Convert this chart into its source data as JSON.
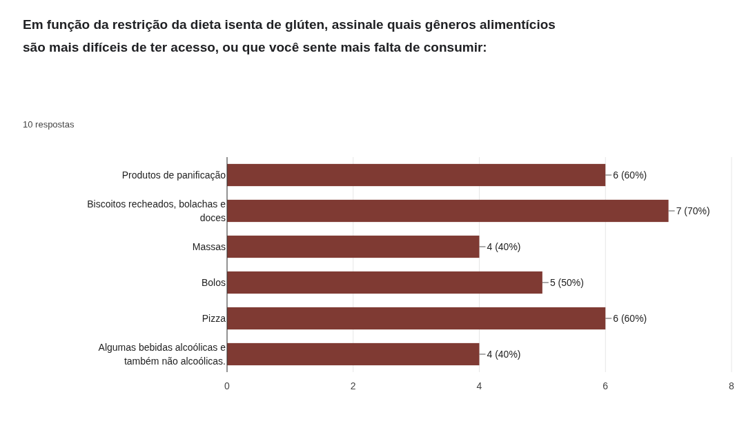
{
  "chart_data": {
    "type": "bar",
    "orientation": "horizontal",
    "title": "Em função da restrição da dieta isenta de glúten, assinale quais gêneros alimentícios são mais difíceis de ter acesso, ou que você sente mais falta de consumir:",
    "subtitle": "10 respostas",
    "categories": [
      "Produtos de panificação",
      "Biscoitos recheados, bolachas e doces",
      "Massas",
      "Bolos",
      "Pizza",
      "Algumas bebidas alcoólicas e também não alcoólicas."
    ],
    "values": [
      6,
      7,
      4,
      5,
      6,
      4
    ],
    "value_labels": [
      "6 (60%)",
      "7 (70%)",
      "4 (40%)",
      "5 (50%)",
      "6 (60%)",
      "4 (40%)"
    ],
    "color": "#7f3a33",
    "xlim": [
      0,
      8
    ],
    "xticks": [
      0,
      2,
      4,
      6,
      8
    ],
    "grid": "x"
  }
}
